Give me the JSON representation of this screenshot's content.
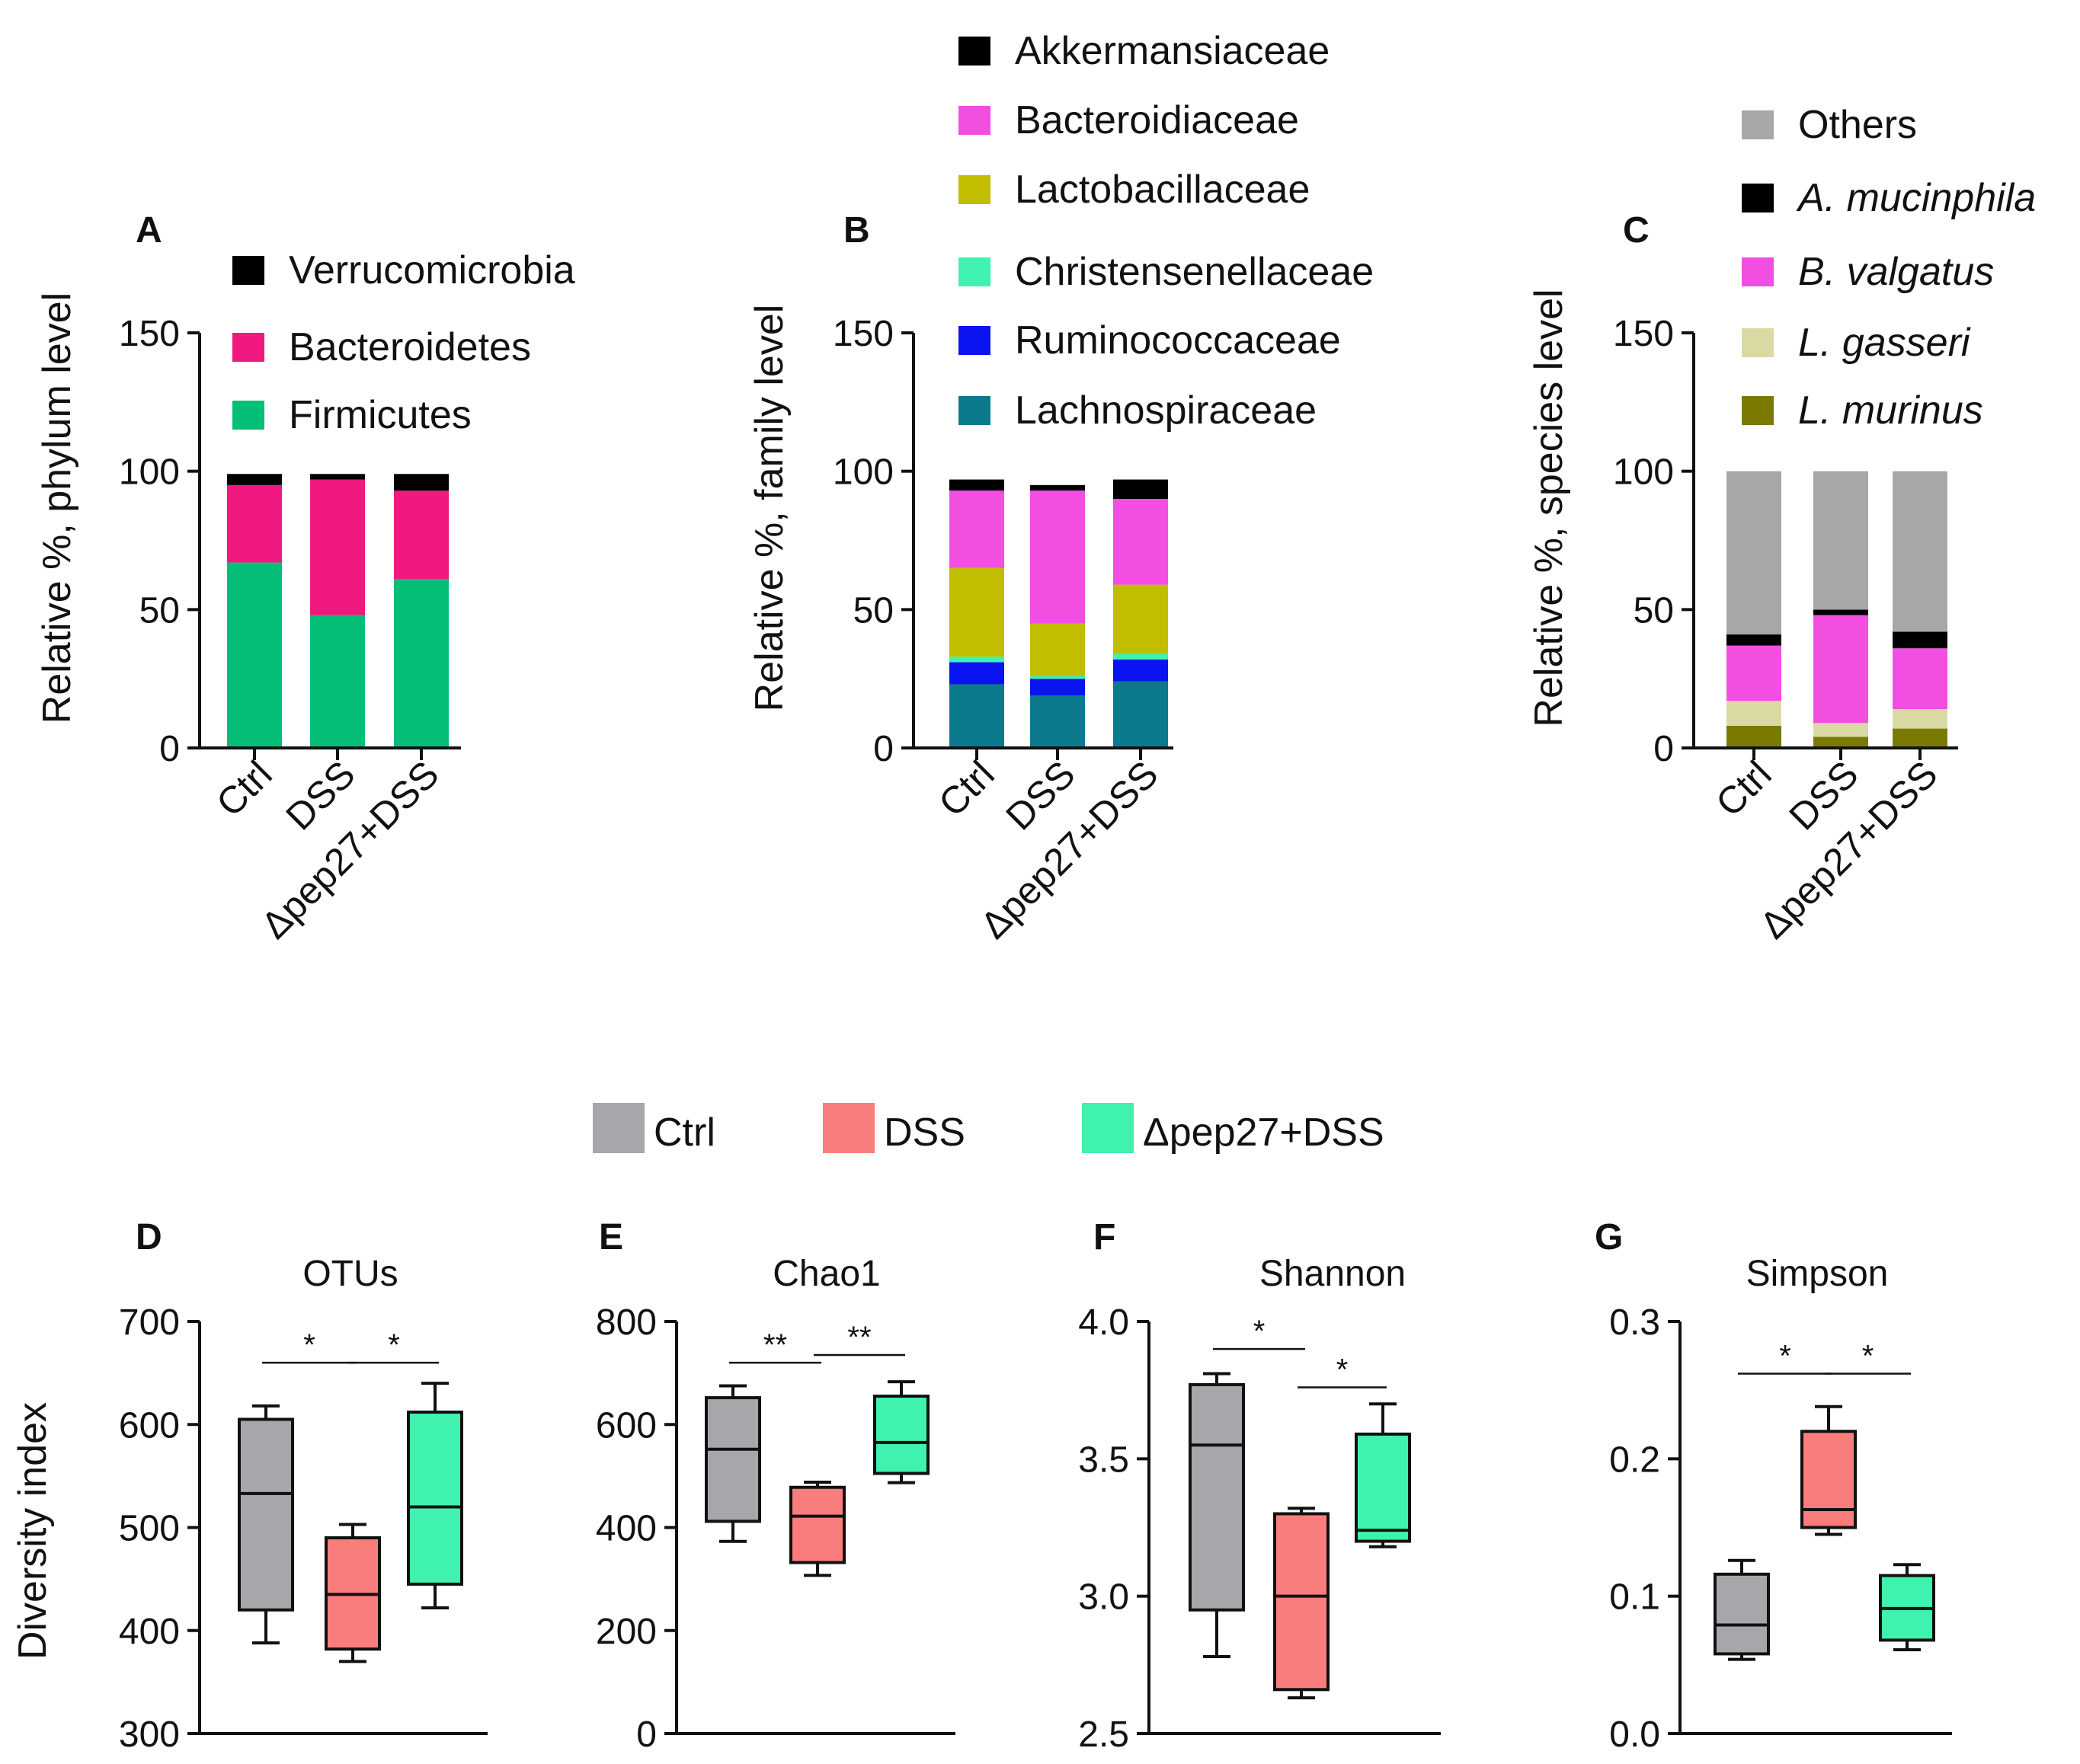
{
  "colors": {
    "verrucomicrobia": "#000000",
    "bacteroidetes": "#f0197f",
    "firmicutes": "#05bf78",
    "akkermansiaceae": "#000000",
    "bacteroidiaceae": "#f24ee0",
    "lactobacillaceae": "#c2bd00",
    "christensenellaceae": "#3ff2b2",
    "ruminococcaceae": "#0a14f0",
    "lachnospiraceae": "#0a7a8c",
    "others": "#a7a7aa",
    "a_mucinphila": "#000000",
    "b_valgatus": "#f24ee0",
    "l_gasseri": "#d9d9a3",
    "l_murinus": "#7a7a00",
    "ctrl": "#a7a7ab",
    "dss": "#fa7d7d",
    "pep27": "#3ff2ae"
  },
  "chart_data": [
    {
      "panel": "A",
      "type": "bar",
      "stacked": true,
      "ylabel": "Relative %, phylum level",
      "ylim": [
        0,
        150
      ],
      "yticks": [
        "0",
        "50",
        "100",
        "150"
      ],
      "categories": [
        "Ctrl",
        "DSS",
        "Δpep27+DSS"
      ],
      "series": [
        {
          "name": "Firmicutes",
          "color": "#05bf78",
          "values": [
            67,
            48,
            61
          ]
        },
        {
          "name": "Bacteroidetes",
          "color": "#f0197f",
          "values": [
            28,
            49,
            32
          ]
        },
        {
          "name": "Verrucomicrobia",
          "color": "#000000",
          "values": [
            4,
            2,
            6
          ]
        }
      ],
      "legend": [
        "Verrucomicrobia",
        "Bacteroidetes",
        "Firmicutes"
      ]
    },
    {
      "panel": "B",
      "type": "bar",
      "stacked": true,
      "ylabel": "Relative %, family level",
      "ylim": [
        0,
        150
      ],
      "yticks": [
        "0",
        "50",
        "100",
        "150"
      ],
      "categories": [
        "Ctrl",
        "DSS",
        "Δpep27+DSS"
      ],
      "series": [
        {
          "name": "Lachnospiraceae",
          "color": "#0a7a8c",
          "values": [
            23,
            19,
            24
          ]
        },
        {
          "name": "Ruminococcaceae",
          "color": "#0a14f0",
          "values": [
            8,
            6,
            8
          ]
        },
        {
          "name": "Christensenellaceae",
          "color": "#3ff2b2",
          "values": [
            2,
            1,
            2
          ]
        },
        {
          "name": "Lactobacillaceae",
          "color": "#c2bd00",
          "values": [
            32,
            19,
            25
          ]
        },
        {
          "name": "Bacteroidiaceae",
          "color": "#f24ee0",
          "values": [
            28,
            48,
            31
          ]
        },
        {
          "name": "Akkermansiaceae",
          "color": "#000000",
          "values": [
            4,
            2,
            7
          ]
        }
      ],
      "legend": [
        "Akkermansiaceae",
        "Bacteroidiaceae",
        "Lactobacillaceae",
        "Christensenellaceae",
        "Ruminococcaceae",
        "Lachnospiraceae"
      ]
    },
    {
      "panel": "C",
      "type": "bar",
      "stacked": true,
      "ylabel": "Relative %, species level",
      "ylim": [
        0,
        150
      ],
      "yticks": [
        "0",
        "50",
        "100",
        "150"
      ],
      "categories": [
        "Ctrl",
        "DSS",
        "Δpep27+DSS"
      ],
      "series": [
        {
          "name": "L. murinus",
          "color": "#7a7a00",
          "values": [
            8,
            4,
            7
          ]
        },
        {
          "name": "L. gasseri",
          "color": "#d9d9a3",
          "values": [
            9,
            5,
            7
          ]
        },
        {
          "name": "B. valgatus",
          "color": "#f24ee0",
          "values": [
            20,
            39,
            22
          ]
        },
        {
          "name": "A. mucinphila",
          "color": "#000000",
          "values": [
            4,
            2,
            6
          ]
        },
        {
          "name": "Others",
          "color": "#a7a7aa",
          "values": [
            59,
            50,
            58
          ]
        }
      ],
      "legend": [
        "Others",
        "A. mucinphila",
        "B. valgatus",
        "L. gasseri",
        "L. murinus"
      ]
    },
    {
      "panel": "D",
      "type": "box",
      "title": "OTUs",
      "ylabel": "Diversity index",
      "ylim": [
        300,
        700
      ],
      "yticks": [
        "300",
        "400",
        "500",
        "600",
        "700"
      ],
      "categories": [
        "Ctrl",
        "DSS",
        "Δpep27+DSS"
      ],
      "boxes": [
        {
          "min": 388,
          "q1": 420,
          "median": 533,
          "q3": 605,
          "max": 618
        },
        {
          "min": 370,
          "q1": 382,
          "median": 435,
          "q3": 490,
          "max": 503
        },
        {
          "min": 422,
          "q1": 445,
          "median": 520,
          "q3": 612,
          "max": 640
        }
      ],
      "significance": [
        {
          "from": 0,
          "to": 1,
          "label": "*",
          "y": 660
        },
        {
          "from": 1,
          "to": 2,
          "label": "*",
          "y": 660
        }
      ]
    },
    {
      "panel": "E",
      "type": "box",
      "title": "Chao1",
      "ylim": [
        0,
        800
      ],
      "yticks": [
        "0",
        "200",
        "400",
        "600",
        "800"
      ],
      "categories": [
        "Ctrl",
        "DSS",
        "Δpep27+DSS"
      ],
      "boxes": [
        {
          "min": 373,
          "q1": 412,
          "median": 552,
          "q3": 652,
          "max": 675
        },
        {
          "min": 307,
          "q1": 332,
          "median": 422,
          "q3": 478,
          "max": 488
        },
        {
          "min": 487,
          "q1": 505,
          "median": 565,
          "q3": 655,
          "max": 683
        }
      ],
      "significance": [
        {
          "from": 0,
          "to": 1,
          "label": "**",
          "y": 720
        },
        {
          "from": 1,
          "to": 2,
          "label": "**",
          "y": 735
        }
      ]
    },
    {
      "panel": "F",
      "type": "box",
      "title": "Shannon",
      "ylim": [
        2.5,
        4.0
      ],
      "yticks": [
        "2.5",
        "3.0",
        "3.5",
        "4.0"
      ],
      "categories": [
        "Ctrl",
        "DSS",
        "Δpep27+DSS"
      ],
      "boxes": [
        {
          "min": 2.78,
          "q1": 2.95,
          "median": 3.55,
          "q3": 3.77,
          "max": 3.81
        },
        {
          "min": 2.63,
          "q1": 2.66,
          "median": 3.0,
          "q3": 3.3,
          "max": 3.32
        },
        {
          "min": 3.18,
          "q1": 3.2,
          "median": 3.24,
          "q3": 3.59,
          "max": 3.7
        }
      ],
      "significance": [
        {
          "from": 0,
          "to": 1,
          "label": "*",
          "y": 3.9
        },
        {
          "from": 1,
          "to": 2,
          "label": "*",
          "y": 3.76
        }
      ]
    },
    {
      "panel": "G",
      "type": "box",
      "title": "Simpson",
      "ylim": [
        0.0,
        0.3
      ],
      "yticks": [
        "0.0",
        "0.1",
        "0.2",
        "0.3"
      ],
      "categories": [
        "Ctrl",
        "DSS",
        "Δpep27+DSS"
      ],
      "boxes": [
        {
          "min": 0.054,
          "q1": 0.058,
          "median": 0.079,
          "q3": 0.116,
          "max": 0.126
        },
        {
          "min": 0.145,
          "q1": 0.15,
          "median": 0.163,
          "q3": 0.22,
          "max": 0.238
        },
        {
          "min": 0.061,
          "q1": 0.068,
          "median": 0.091,
          "q3": 0.115,
          "max": 0.123
        }
      ],
      "significance": [
        {
          "from": 0,
          "to": 1,
          "label": "*",
          "y": 0.262
        },
        {
          "from": 1,
          "to": 2,
          "label": "*",
          "y": 0.262
        }
      ]
    }
  ],
  "group_legend": [
    "Ctrl",
    "DSS",
    "Δpep27+DSS"
  ]
}
